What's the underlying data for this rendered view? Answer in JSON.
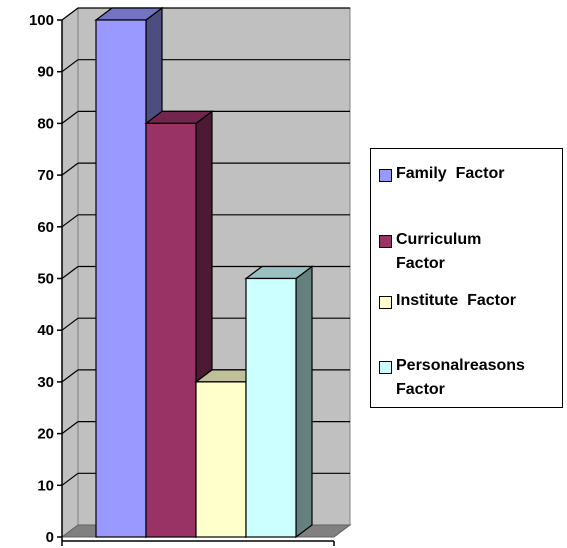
{
  "chart_data": {
    "type": "bar",
    "title": "",
    "xlabel": "",
    "ylabel": "",
    "ylim": [
      0,
      100
    ],
    "y_ticks": [
      "0",
      "10",
      "20",
      "30",
      "40",
      "50",
      "60",
      "70",
      "80",
      "90",
      "100"
    ],
    "style": "3d-column",
    "grid": true,
    "legend_position": "right",
    "background_color": "#c0c0c0",
    "series": [
      {
        "name": "Family  Factor",
        "value": 100,
        "color": "#9999ff"
      },
      {
        "name": "Curriculum Factor",
        "value": 80,
        "color": "#993366"
      },
      {
        "name": "Institute  Factor",
        "value": 30,
        "color": "#ffffcc"
      },
      {
        "name": "Personalreasons Factor",
        "value": 50,
        "color": "#ccffff"
      }
    ]
  },
  "legend": {
    "items": [
      {
        "label": "Family  Factor",
        "color": "#9999ff"
      },
      {
        "label": "Curriculum\nFactor",
        "color": "#993366"
      },
      {
        "label": "Institute  Factor",
        "color": "#ffffcc"
      },
      {
        "label": "Personalreasons\nFactor",
        "color": "#ccffff"
      }
    ]
  }
}
